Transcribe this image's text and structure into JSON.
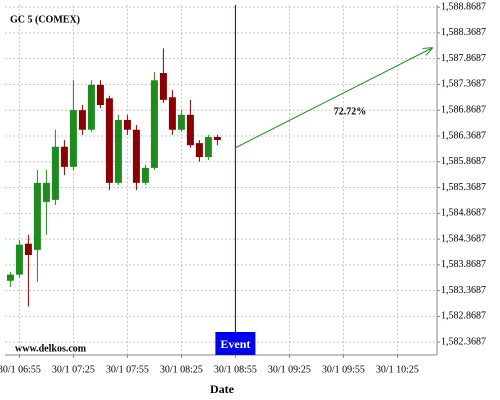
{
  "chart_data": {
    "type": "candlestick",
    "title": "GC 5 (COMEX)",
    "watermark": "www.delkos.com",
    "x_label": "Date",
    "x": [
      "30/1 06:50",
      "30/1 06:55",
      "30/1 07:00",
      "30/1 07:05",
      "30/1 07:10",
      "30/1 07:15",
      "30/1 07:20",
      "30/1 07:25",
      "30/1 07:30",
      "30/1 07:35",
      "30/1 07:40",
      "30/1 07:45",
      "30/1 07:50",
      "30/1 07:55",
      "30/1 08:00",
      "30/1 08:05",
      "30/1 08:10",
      "30/1 08:15",
      "30/1 08:20",
      "30/1 08:25",
      "30/1 08:30",
      "30/1 08:35",
      "30/1 08:40",
      "30/1 08:45"
    ],
    "open": [
      1583.56,
      1583.68,
      1584.28,
      1584.16,
      1585.09,
      1585.13,
      1586.16,
      1585.77,
      1586.87,
      1586.49,
      1587.36,
      1587.1,
      1585.46,
      1586.68,
      1586.49,
      1585.46,
      1585.75,
      1587.59,
      1587.12,
      1586.49,
      1586.78,
      1586.23,
      1585.96,
      1586.35
    ],
    "high": [
      1583.73,
      1584.35,
      1584.45,
      1585.71,
      1585.71,
      1586.49,
      1586.29,
      1587.45,
      1586.97,
      1587.45,
      1587.45,
      1587.15,
      1586.78,
      1586.78,
      1586.58,
      1585.81,
      1587.61,
      1588.07,
      1587.26,
      1586.87,
      1587.07,
      1586.29,
      1586.39,
      1586.39
    ],
    "low": [
      1583.44,
      1583.62,
      1583.06,
      1583.54,
      1584.45,
      1585.03,
      1585.61,
      1585.71,
      1586.39,
      1586.45,
      1586.91,
      1585.32,
      1585.42,
      1586.39,
      1585.32,
      1585.42,
      1585.71,
      1587.01,
      1586.39,
      1586.45,
      1586.14,
      1585.87,
      1585.9,
      1586.19
    ],
    "close": [
      1583.68,
      1584.26,
      1584.06,
      1585.46,
      1585.46,
      1586.16,
      1585.77,
      1586.87,
      1586.49,
      1587.36,
      1586.97,
      1585.46,
      1586.68,
      1586.49,
      1585.46,
      1585.75,
      1587.45,
      1587.07,
      1586.49,
      1586.78,
      1586.19,
      1585.96,
      1586.35,
      1586.29
    ],
    "up_color": "#1f8b1f",
    "down_color": "#8b0000",
    "xlim": [
      "30/1 06:47",
      "30/1 10:47"
    ],
    "xticks": [
      "30/1 06:55",
      "30/1 07:25",
      "30/1 07:55",
      "30/1 08:25",
      "30/1 08:55",
      "30/1 09:25",
      "30/1 09:55",
      "30/1 10:25"
    ],
    "ylim": [
      1582.12,
      1588.91
    ],
    "yticks": [
      {
        "value": 1582.3687,
        "label": "1,582.3687"
      },
      {
        "value": 1582.8687,
        "label": "1,582.8687"
      },
      {
        "value": 1583.3687,
        "label": "1,583.3687"
      },
      {
        "value": 1583.8687,
        "label": "1,583.8687"
      },
      {
        "value": 1584.3687,
        "label": "1,584.3687"
      },
      {
        "value": 1584.8687,
        "label": "1,584.8687"
      },
      {
        "value": 1585.3687,
        "label": "1,585.3687"
      },
      {
        "value": 1585.8687,
        "label": "1,585.8687"
      },
      {
        "value": 1586.3687,
        "label": "1,586.3687"
      },
      {
        "value": 1586.8687,
        "label": "1,586.8687"
      },
      {
        "value": 1587.3687,
        "label": "1,587.3687"
      },
      {
        "value": 1587.8687,
        "label": "1,587.8687"
      },
      {
        "value": 1588.3687,
        "label": "1,588.3687"
      },
      {
        "value": 1588.8687,
        "label": "1,588.8687"
      }
    ],
    "grid": true,
    "event": {
      "label": "Event",
      "x": "30/1 08:55"
    },
    "annotation": {
      "text": "72.72%",
      "color": "#1f8b1f"
    }
  }
}
